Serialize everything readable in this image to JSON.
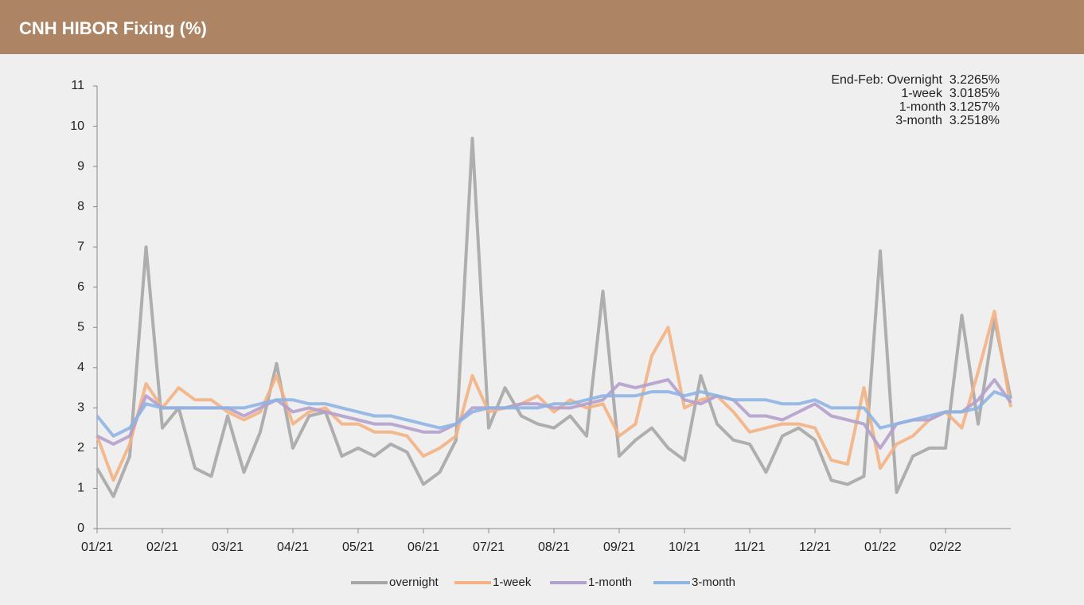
{
  "chart_data": {
    "type": "line",
    "title": "CNH HIBOR Fixing (%)",
    "annotation": [
      "End-Feb: Overnight  3.2265%",
      "1-week  3.0185%",
      "1-month 3.1257%",
      "3-month  3.2518%"
    ],
    "categories": [
      "01/21",
      null,
      null,
      null,
      "02/21",
      null,
      null,
      null,
      "03/21",
      null,
      null,
      null,
      "04/21",
      null,
      null,
      null,
      "05/21",
      null,
      null,
      null,
      "06/21",
      null,
      null,
      null,
      "07/21",
      null,
      null,
      null,
      "08/21",
      null,
      null,
      null,
      "09/21",
      null,
      null,
      null,
      "10/21",
      null,
      null,
      null,
      "11/21",
      null,
      null,
      null,
      "12/21",
      null,
      null,
      null,
      "01/22",
      null,
      null,
      null,
      "02/22",
      null,
      null,
      null,
      null
    ],
    "series": [
      {
        "name": "overnight",
        "color": "#a6a6a6",
        "values": [
          1.5,
          0.8,
          1.8,
          7.0,
          2.5,
          3.0,
          1.5,
          1.3,
          2.8,
          1.4,
          2.4,
          4.1,
          2.0,
          2.8,
          2.9,
          1.8,
          2.0,
          1.8,
          2.1,
          1.9,
          1.1,
          1.4,
          2.2,
          9.7,
          2.5,
          3.5,
          2.8,
          2.6,
          2.5,
          2.8,
          2.3,
          5.9,
          1.8,
          2.2,
          2.5,
          2.0,
          1.7,
          3.8,
          2.6,
          2.2,
          2.1,
          1.4,
          2.3,
          2.5,
          2.2,
          1.2,
          1.1,
          1.3,
          6.9,
          0.9,
          1.8,
          2.0,
          2.0,
          5.3,
          2.6,
          5.2,
          3.23
        ]
      },
      {
        "name": "1-week",
        "color": "#f4b183",
        "values": [
          2.3,
          1.2,
          2.1,
          3.6,
          3.0,
          3.5,
          3.2,
          3.2,
          2.9,
          2.7,
          2.9,
          3.8,
          2.6,
          2.9,
          3.0,
          2.6,
          2.6,
          2.4,
          2.4,
          2.3,
          1.8,
          2.0,
          2.3,
          3.8,
          2.9,
          3.0,
          3.1,
          3.3,
          2.9,
          3.2,
          3.0,
          3.1,
          2.3,
          2.6,
          4.3,
          5.0,
          3.0,
          3.2,
          3.3,
          2.9,
          2.4,
          2.5,
          2.6,
          2.6,
          2.5,
          1.7,
          1.6,
          3.5,
          1.5,
          2.1,
          2.3,
          2.7,
          2.9,
          2.5,
          3.9,
          5.4,
          3.02
        ]
      },
      {
        "name": "1-month",
        "color": "#b4a0cc",
        "values": [
          2.3,
          2.1,
          2.3,
          3.3,
          3.0,
          3.0,
          3.0,
          3.0,
          3.0,
          2.8,
          3.0,
          3.2,
          2.9,
          3.0,
          2.9,
          2.8,
          2.7,
          2.6,
          2.6,
          2.5,
          2.4,
          2.4,
          2.6,
          3.0,
          3.0,
          3.0,
          3.1,
          3.1,
          3.0,
          3.0,
          3.1,
          3.2,
          3.6,
          3.5,
          3.6,
          3.7,
          3.2,
          3.1,
          3.3,
          3.2,
          2.8,
          2.8,
          2.7,
          2.9,
          3.1,
          2.8,
          2.7,
          2.6,
          2.0,
          2.6,
          2.7,
          2.7,
          2.9,
          2.9,
          3.2,
          3.7,
          3.13
        ]
      },
      {
        "name": "3-month",
        "color": "#8eb4e3",
        "values": [
          2.8,
          2.3,
          2.5,
          3.1,
          3.0,
          3.0,
          3.0,
          3.0,
          3.0,
          3.0,
          3.1,
          3.2,
          3.2,
          3.1,
          3.1,
          3.0,
          2.9,
          2.8,
          2.8,
          2.7,
          2.6,
          2.5,
          2.6,
          2.9,
          3.0,
          3.0,
          3.0,
          3.0,
          3.1,
          3.1,
          3.2,
          3.3,
          3.3,
          3.3,
          3.4,
          3.4,
          3.3,
          3.4,
          3.3,
          3.2,
          3.2,
          3.2,
          3.1,
          3.1,
          3.2,
          3.0,
          3.0,
          3.0,
          2.5,
          2.6,
          2.7,
          2.8,
          2.9,
          2.9,
          3.0,
          3.4,
          3.25
        ]
      }
    ],
    "ylim": [
      0,
      11
    ],
    "yticks": [
      0,
      1,
      2,
      3,
      4,
      5,
      6,
      7,
      8,
      9,
      10,
      11
    ],
    "grid": false,
    "legend": "bottom"
  }
}
